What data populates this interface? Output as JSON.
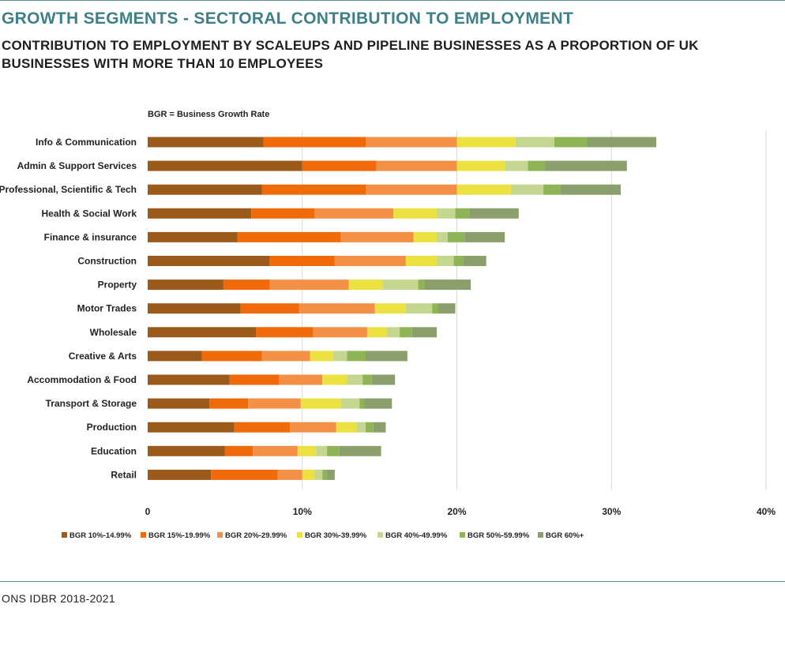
{
  "header": {
    "title": "GROWTH SEGMENTS - SECTORAL CONTRIBUTION TO EMPLOYMENT",
    "subtitle": "CONTRIBUTION TO EMPLOYMENT BY SCALEUPS AND PIPELINE BUSINESSES AS A PROPORTION OF UK BUSINESSES WITH MORE THAN 10 EMPLOYEES"
  },
  "note": "BGR = Business Growth Rate",
  "source": "ONS IDBR 2018-2021",
  "chart_data": {
    "type": "bar",
    "orientation": "horizontal",
    "stacked": true,
    "categories": [
      "Info & Communication",
      "Admin & Support Services",
      "Professional, Scientific & Tech",
      "Health & Social Work",
      "Finance & insurance",
      "Construction",
      "Property",
      "Motor Trades",
      "Wholesale",
      "Creative & Arts",
      "Accommodation & Food",
      "Transport & Storage",
      "Production",
      "Education",
      "Retail"
    ],
    "series": [
      {
        "name": "BGR 10%-14.99%",
        "color": "#9c5a1a",
        "values": [
          7.5,
          10.0,
          7.4,
          6.7,
          5.8,
          7.9,
          4.9,
          6.0,
          7.0,
          3.5,
          5.3,
          4.0,
          5.6,
          5.0,
          4.1
        ]
      },
      {
        "name": "BGR 15%-19.99%",
        "color": "#f06a0a",
        "values": [
          6.6,
          4.8,
          6.7,
          4.1,
          6.7,
          4.2,
          3.0,
          3.8,
          3.7,
          3.9,
          3.2,
          2.5,
          3.6,
          1.8,
          4.3
        ]
      },
      {
        "name": "BGR 20%-29.99%",
        "color": "#f39046",
        "values": [
          5.9,
          5.2,
          5.9,
          5.1,
          4.7,
          4.6,
          5.1,
          4.9,
          3.5,
          3.1,
          2.8,
          3.4,
          3.0,
          2.9,
          1.6
        ]
      },
      {
        "name": "BGR 30%-39.99%",
        "color": "#ebe141",
        "values": [
          3.8,
          3.1,
          3.5,
          2.8,
          1.5,
          2.0,
          2.2,
          2.0,
          1.3,
          1.5,
          1.6,
          2.6,
          1.3,
          1.2,
          0.8
        ]
      },
      {
        "name": "BGR 40%-49.99%",
        "color": "#c4d690",
        "values": [
          2.5,
          1.5,
          2.1,
          1.2,
          0.7,
          1.1,
          2.3,
          1.7,
          0.8,
          0.9,
          1.0,
          1.2,
          0.6,
          0.7,
          0.5
        ]
      },
      {
        "name": "BGR 50%-59.99%",
        "color": "#8eb555",
        "values": [
          2.1,
          1.1,
          1.1,
          0.9,
          1.1,
          0.6,
          0.4,
          0.4,
          0.8,
          1.2,
          0.6,
          0.3,
          0.5,
          0.8,
          0.3
        ]
      },
      {
        "name": "BGR 60%+",
        "color": "#8a9f6b",
        "values": [
          4.5,
          5.3,
          3.9,
          3.2,
          2.6,
          1.5,
          3.0,
          1.1,
          1.6,
          2.7,
          1.5,
          1.8,
          0.8,
          2.7,
          0.5
        ]
      }
    ],
    "x_ticks": [
      "0",
      "10%",
      "20%",
      "30%",
      "40%"
    ],
    "xlim": [
      0,
      40
    ],
    "grid": "vertical",
    "legend_position": "bottom"
  }
}
